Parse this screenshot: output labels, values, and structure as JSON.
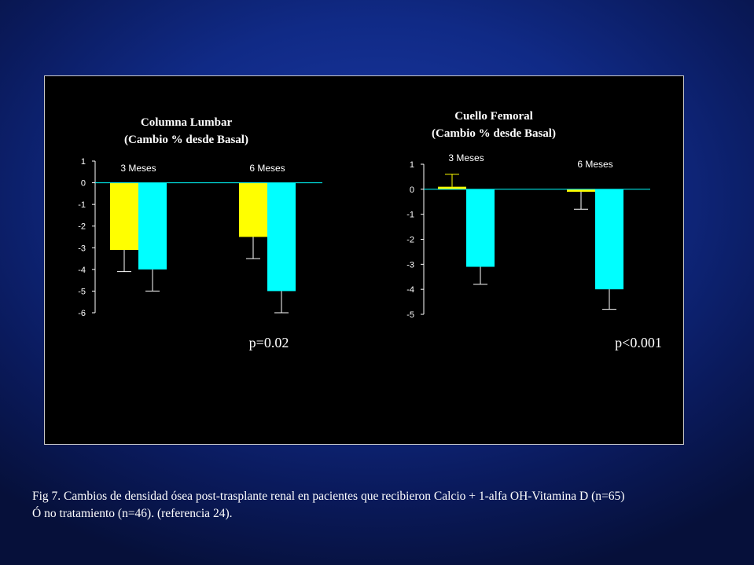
{
  "chart_data": [
    {
      "type": "bar",
      "title": "Columna Lumbar",
      "subtitle": "(Cambio % desde Basal)",
      "categories": [
        "3 Meses",
        "6 Meses"
      ],
      "series": [
        {
          "values": [
            -3.1,
            -2.5
          ],
          "errors": [
            1.0,
            1.0
          ]
        },
        {
          "values": [
            -4.0,
            -5.0
          ],
          "errors": [
            1.0,
            1.0
          ]
        }
      ],
      "yticks": [
        1,
        0,
        -1,
        -2,
        -3,
        -4,
        -5,
        -6
      ],
      "ylim": [
        -6,
        1
      ],
      "annotation": "p=0.02",
      "colors": [
        "#ffff00",
        "#00ffff"
      ]
    },
    {
      "type": "bar",
      "title": "Cuello Femoral",
      "subtitle": "(Cambio % desde Basal)",
      "categories": [
        "3 Meses",
        "6 Meses"
      ],
      "series": [
        {
          "values": [
            0.1,
            -0.1
          ],
          "errors": [
            0.5,
            0.7
          ]
        },
        {
          "values": [
            -3.1,
            -4.0
          ],
          "errors": [
            0.7,
            0.8
          ]
        }
      ],
      "yticks": [
        1,
        0,
        -1,
        -2,
        -3,
        -4,
        -5
      ],
      "ylim": [
        -5,
        1
      ],
      "annotation": "p<0.001",
      "colors": [
        "#ffff00",
        "#00ffff"
      ]
    }
  ],
  "caption": {
    "line1": "Fig 7. Cambios de densidad ósea post-trasplante renal en pacientes que recibieron Calcio + 1-alfa OH-Vitamina D (n=65)",
    "line2": "Ó no tratamiento (n=46). (referencia 24)."
  }
}
